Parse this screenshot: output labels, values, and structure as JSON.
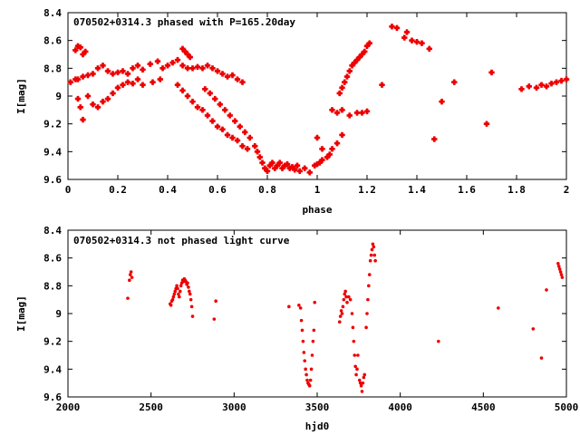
{
  "chart_data": [
    {
      "type": "scatter",
      "title": "070502+0314.3 phased with P=165.20day",
      "xlabel": "phase",
      "ylabel": "I[mag]",
      "xlim": [
        0,
        2
      ],
      "ylim": [
        8.4,
        9.6
      ],
      "y_inverted": true,
      "xticks": [
        0,
        0.2,
        0.4,
        0.6,
        0.8,
        1,
        1.2,
        1.4,
        1.6,
        1.8,
        2
      ],
      "xtick_labels": [
        "0",
        "0.2",
        "0.4",
        "0.6",
        "0.8",
        "1",
        "1.2",
        "1.4",
        "1.6",
        "1.8",
        "2"
      ],
      "yticks": [
        8.4,
        8.6,
        8.8,
        9,
        9.2,
        9.4,
        9.6
      ],
      "ytick_labels": [
        "8.4",
        "8.6",
        "8.8",
        "9",
        "9.2",
        "9.4",
        "9.6"
      ],
      "grid": false,
      "marker_color": "#ee0000",
      "points": [
        [
          0.03,
          8.67
        ],
        [
          0.04,
          8.64
        ],
        [
          0.05,
          8.65
        ],
        [
          0.06,
          8.7
        ],
        [
          0.07,
          8.68
        ],
        [
          0.04,
          8.88
        ],
        [
          0.06,
          8.86
        ],
        [
          0.08,
          8.85
        ],
        [
          0.1,
          8.84
        ],
        [
          0.12,
          8.8
        ],
        [
          0.14,
          8.78
        ],
        [
          0.16,
          8.82
        ],
        [
          0.18,
          8.84
        ],
        [
          0.2,
          8.83
        ],
        [
          0.22,
          8.82
        ],
        [
          0.24,
          8.84
        ],
        [
          0.26,
          8.8
        ],
        [
          0.28,
          8.78
        ],
        [
          0.3,
          8.81
        ],
        [
          0.33,
          8.77
        ],
        [
          0.36,
          8.75
        ],
        [
          0.38,
          8.8
        ],
        [
          0.4,
          8.78
        ],
        [
          0.42,
          8.76
        ],
        [
          0.44,
          8.74
        ],
        [
          0.46,
          8.66
        ],
        [
          0.47,
          8.68
        ],
        [
          0.48,
          8.7
        ],
        [
          0.49,
          8.72
        ],
        [
          0.46,
          8.78
        ],
        [
          0.48,
          8.8
        ],
        [
          0.5,
          8.8
        ],
        [
          0.52,
          8.79
        ],
        [
          0.54,
          8.8
        ],
        [
          0.56,
          8.78
        ],
        [
          0.58,
          8.8
        ],
        [
          0.6,
          8.82
        ],
        [
          0.62,
          8.84
        ],
        [
          0.64,
          8.86
        ],
        [
          0.66,
          8.85
        ],
        [
          0.68,
          8.88
        ],
        [
          0.7,
          8.9
        ],
        [
          0.01,
          8.9
        ],
        [
          0.03,
          8.88
        ],
        [
          0.04,
          9.02
        ],
        [
          0.05,
          9.08
        ],
        [
          0.06,
          9.17
        ],
        [
          0.08,
          9.0
        ],
        [
          0.1,
          9.06
        ],
        [
          0.12,
          9.08
        ],
        [
          0.14,
          9.04
        ],
        [
          0.16,
          9.02
        ],
        [
          0.18,
          8.98
        ],
        [
          0.2,
          8.94
        ],
        [
          0.22,
          8.92
        ],
        [
          0.24,
          8.9
        ],
        [
          0.26,
          8.91
        ],
        [
          0.28,
          8.88
        ],
        [
          0.3,
          8.92
        ],
        [
          0.34,
          8.9
        ],
        [
          0.37,
          8.88
        ],
        [
          0.44,
          8.92
        ],
        [
          0.46,
          8.96
        ],
        [
          0.48,
          9.0
        ],
        [
          0.5,
          9.04
        ],
        [
          0.52,
          9.08
        ],
        [
          0.54,
          9.1
        ],
        [
          0.56,
          9.14
        ],
        [
          0.58,
          9.18
        ],
        [
          0.6,
          9.22
        ],
        [
          0.62,
          9.24
        ],
        [
          0.64,
          9.28
        ],
        [
          0.66,
          9.3
        ],
        [
          0.68,
          9.32
        ],
        [
          0.7,
          9.36
        ],
        [
          0.72,
          9.38
        ],
        [
          0.55,
          8.95
        ],
        [
          0.57,
          8.98
        ],
        [
          0.59,
          9.02
        ],
        [
          0.61,
          9.06
        ],
        [
          0.63,
          9.1
        ],
        [
          0.65,
          9.14
        ],
        [
          0.67,
          9.18
        ],
        [
          0.69,
          9.22
        ],
        [
          0.71,
          9.26
        ],
        [
          0.73,
          9.3
        ],
        [
          0.75,
          9.36
        ],
        [
          0.76,
          9.4
        ],
        [
          0.77,
          9.44
        ],
        [
          0.78,
          9.48
        ],
        [
          0.79,
          9.52
        ],
        [
          0.8,
          9.54
        ],
        [
          0.81,
          9.5
        ],
        [
          0.82,
          9.48
        ],
        [
          0.83,
          9.52
        ],
        [
          0.84,
          9.5
        ],
        [
          0.85,
          9.48
        ],
        [
          0.86,
          9.52
        ],
        [
          0.87,
          9.5
        ],
        [
          0.88,
          9.49
        ],
        [
          0.89,
          9.52
        ],
        [
          0.9,
          9.51
        ],
        [
          0.91,
          9.53
        ],
        [
          0.92,
          9.5
        ],
        [
          0.93,
          9.54
        ],
        [
          0.95,
          9.52
        ],
        [
          0.97,
          9.55
        ],
        [
          0.99,
          9.5
        ],
        [
          1.0,
          9.49
        ],
        [
          1.01,
          9.48
        ],
        [
          1.02,
          9.46
        ],
        [
          1.04,
          9.44
        ],
        [
          1.05,
          9.42
        ],
        [
          1.06,
          9.38
        ],
        [
          1.08,
          9.34
        ],
        [
          1.1,
          9.28
        ],
        [
          1.0,
          9.3
        ],
        [
          1.02,
          9.38
        ],
        [
          1.06,
          9.1
        ],
        [
          1.08,
          9.12
        ],
        [
          1.09,
          8.98
        ],
        [
          1.1,
          8.94
        ],
        [
          1.11,
          8.9
        ],
        [
          1.12,
          8.86
        ],
        [
          1.13,
          8.82
        ],
        [
          1.14,
          8.78
        ],
        [
          1.15,
          8.76
        ],
        [
          1.16,
          8.74
        ],
        [
          1.17,
          8.72
        ],
        [
          1.18,
          8.7
        ],
        [
          1.19,
          8.68
        ],
        [
          1.2,
          8.64
        ],
        [
          1.21,
          8.62
        ],
        [
          1.1,
          9.1
        ],
        [
          1.13,
          9.14
        ],
        [
          1.16,
          9.12
        ],
        [
          1.18,
          9.12
        ],
        [
          1.2,
          9.11
        ],
        [
          1.26,
          8.92
        ],
        [
          1.3,
          8.5
        ],
        [
          1.32,
          8.51
        ],
        [
          1.35,
          8.58
        ],
        [
          1.36,
          8.54
        ],
        [
          1.38,
          8.6
        ],
        [
          1.4,
          8.61
        ],
        [
          1.42,
          8.62
        ],
        [
          1.45,
          8.66
        ],
        [
          1.47,
          9.31
        ],
        [
          1.5,
          9.04
        ],
        [
          1.55,
          8.9
        ],
        [
          1.68,
          9.2
        ],
        [
          1.7,
          8.83
        ],
        [
          1.82,
          8.95
        ],
        [
          1.85,
          8.93
        ],
        [
          1.88,
          8.94
        ],
        [
          1.9,
          8.92
        ],
        [
          1.92,
          8.93
        ],
        [
          1.94,
          8.91
        ],
        [
          1.96,
          8.9
        ],
        [
          1.98,
          8.89
        ],
        [
          2.0,
          8.88
        ]
      ]
    },
    {
      "type": "scatter",
      "title": "070502+0314.3 not phased light curve",
      "xlabel": "hjd0",
      "ylabel": "I[mag]",
      "xlim": [
        2000,
        5000
      ],
      "ylim": [
        8.4,
        9.6
      ],
      "y_inverted": true,
      "xticks": [
        2000,
        2500,
        3000,
        3500,
        4000,
        4500,
        5000
      ],
      "xtick_labels": [
        "2000",
        "2500",
        "3000",
        "3500",
        "4000",
        "4500",
        "5000"
      ],
      "yticks": [
        8.4,
        8.6,
        8.8,
        9,
        9.2,
        9.4,
        9.6
      ],
      "ytick_labels": [
        "8.4",
        "8.6",
        "8.8",
        "9",
        "9.2",
        "9.4",
        "9.6"
      ],
      "grid": false,
      "marker_color": "#ee0000",
      "points": [
        [
          2360,
          8.89
        ],
        [
          2370,
          8.76
        ],
        [
          2375,
          8.72
        ],
        [
          2380,
          8.7
        ],
        [
          2385,
          8.74
        ],
        [
          2615,
          8.93
        ],
        [
          2620,
          8.94
        ],
        [
          2625,
          8.91
        ],
        [
          2630,
          8.9
        ],
        [
          2635,
          8.88
        ],
        [
          2640,
          8.86
        ],
        [
          2645,
          8.84
        ],
        [
          2650,
          8.82
        ],
        [
          2655,
          8.8
        ],
        [
          2660,
          8.82
        ],
        [
          2665,
          8.86
        ],
        [
          2670,
          8.88
        ],
        [
          2675,
          8.84
        ],
        [
          2680,
          8.8
        ],
        [
          2685,
          8.78
        ],
        [
          2690,
          8.76
        ],
        [
          2695,
          8.77
        ],
        [
          2700,
          8.75
        ],
        [
          2705,
          8.76
        ],
        [
          2710,
          8.77
        ],
        [
          2715,
          8.79
        ],
        [
          2720,
          8.78
        ],
        [
          2725,
          8.81
        ],
        [
          2730,
          8.84
        ],
        [
          2735,
          8.86
        ],
        [
          2740,
          8.9
        ],
        [
          2745,
          8.95
        ],
        [
          2750,
          9.02
        ],
        [
          2880,
          9.04
        ],
        [
          2890,
          8.91
        ],
        [
          3330,
          8.95
        ],
        [
          3390,
          8.94
        ],
        [
          3400,
          8.96
        ],
        [
          3405,
          9.05
        ],
        [
          3410,
          9.12
        ],
        [
          3415,
          9.2
        ],
        [
          3420,
          9.28
        ],
        [
          3425,
          9.34
        ],
        [
          3430,
          9.4
        ],
        [
          3435,
          9.44
        ],
        [
          3440,
          9.48
        ],
        [
          3445,
          9.5
        ],
        [
          3450,
          9.51
        ],
        [
          3455,
          9.52
        ],
        [
          3460,
          9.48
        ],
        [
          3465,
          9.4
        ],
        [
          3470,
          9.3
        ],
        [
          3475,
          9.2
        ],
        [
          3480,
          9.12
        ],
        [
          3485,
          8.92
        ],
        [
          3635,
          9.06
        ],
        [
          3640,
          9.02
        ],
        [
          3645,
          8.98
        ],
        [
          3650,
          9.0
        ],
        [
          3655,
          8.95
        ],
        [
          3660,
          8.9
        ],
        [
          3665,
          8.86
        ],
        [
          3670,
          8.84
        ],
        [
          3675,
          8.88
        ],
        [
          3680,
          8.92
        ],
        [
          3690,
          8.88
        ],
        [
          3700,
          8.9
        ],
        [
          3710,
          9.0
        ],
        [
          3715,
          9.1
        ],
        [
          3720,
          9.2
        ],
        [
          3725,
          9.3
        ],
        [
          3730,
          9.38
        ],
        [
          3735,
          9.44
        ],
        [
          3740,
          9.4
        ],
        [
          3745,
          9.3
        ],
        [
          3755,
          9.48
        ],
        [
          3760,
          9.5
        ],
        [
          3765,
          9.52
        ],
        [
          3770,
          9.56
        ],
        [
          3775,
          9.5
        ],
        [
          3780,
          9.46
        ],
        [
          3785,
          9.44
        ],
        [
          3795,
          9.1
        ],
        [
          3800,
          9.0
        ],
        [
          3805,
          8.9
        ],
        [
          3810,
          8.8
        ],
        [
          3815,
          8.72
        ],
        [
          3820,
          8.62
        ],
        [
          3825,
          8.58
        ],
        [
          3830,
          8.54
        ],
        [
          3835,
          8.5
        ],
        [
          3840,
          8.52
        ],
        [
          3845,
          8.58
        ],
        [
          3850,
          8.62
        ],
        [
          4230,
          9.2
        ],
        [
          4590,
          8.96
        ],
        [
          4800,
          9.11
        ],
        [
          4850,
          9.32
        ],
        [
          4880,
          8.83
        ],
        [
          4950,
          8.64
        ],
        [
          4955,
          8.66
        ],
        [
          4960,
          8.68
        ],
        [
          4965,
          8.7
        ],
        [
          4970,
          8.72
        ],
        [
          4975,
          8.74
        ]
      ]
    }
  ]
}
